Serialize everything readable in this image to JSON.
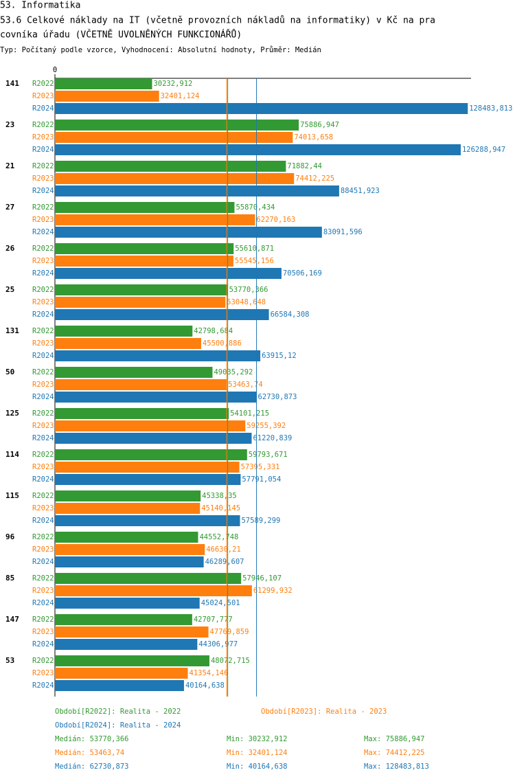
{
  "chart_data": {
    "type": "grouped-hbar",
    "heading": "53. Informatika",
    "title": [
      "53.6 Celkové náklady na IT (včetně provozních nákladů na informatiky) v Kč na pra",
      "covníka úřadu (VČETNĚ UVOLNĚNÝCH FUNKCIONÁŘŮ)"
    ],
    "subtitle": "Typ: Počítaný podle vzorce, Vyhodnocení: Absolutní hodnoty, Průměr: Medián",
    "xlim": [
      0,
      129500
    ],
    "xticks": [
      0
    ],
    "categories": [
      "141",
      "23",
      "21",
      "27",
      "26",
      "25",
      "131",
      "50",
      "125",
      "114",
      "115",
      "96",
      "85",
      "147",
      "53"
    ],
    "series": [
      {
        "name": "R2022",
        "legend_label": "Období[R2022]: Realita - 2022",
        "color": "#339933",
        "values": [
          30232.912,
          75886.947,
          71882.44,
          55870.434,
          55610.871,
          53770.366,
          42798.684,
          49035.292,
          54101.215,
          59793.671,
          45338.35,
          44552.748,
          57946.107,
          42707.777,
          48072.715
        ],
        "value_labels": [
          "30232,912",
          "75886,947",
          "71882,44",
          "55870,434",
          "55610,871",
          "53770,366",
          "42798,684",
          "49035,292",
          "54101,215",
          "59793,671",
          "45338,35",
          "44552,748",
          "57946,107",
          "42707,777",
          "48072,715"
        ],
        "median": 53770.366,
        "median_label": "Medián: 53770,366",
        "min_label": "Min: 30232,912",
        "max_label": "Max: 75886,947"
      },
      {
        "name": "R2023",
        "legend_label": "Období[R2023]: Realita - 2023",
        "color": "#ff7f0e",
        "values": [
          32401.124,
          74013.658,
          74412.225,
          62270.163,
          55545.156,
          53048.648,
          45500.886,
          53463.74,
          59255.392,
          57395.331,
          45140.145,
          46630.21,
          61299.932,
          47769.859,
          41354.146
        ],
        "value_labels": [
          "32401,124",
          "74013,658",
          "74412,225",
          "62270,163",
          "55545,156",
          "53048,648",
          "45500,886",
          "53463,74",
          "59255,392",
          "57395,331",
          "45140,145",
          "46630,21",
          "61299,932",
          "47769,859",
          "41354,146"
        ],
        "median": 53463.74,
        "median_label": "Medián: 53463,74",
        "min_label": "Min: 32401,124",
        "max_label": "Max: 74412,225"
      },
      {
        "name": "R2024",
        "legend_label": "Období[R2024]: Realita - 2024",
        "color": "#1f77b4",
        "values": [
          128483.813,
          126288.947,
          88451.923,
          83091.596,
          70506.169,
          66584.308,
          63915.12,
          62730.873,
          61220.839,
          57791.054,
          57589.299,
          46289.607,
          45024.501,
          44306.977,
          40164.638
        ],
        "value_labels": [
          "128483,813",
          "126288,947",
          "88451,923",
          "83091,596",
          "70506,169",
          "66584,308",
          "63915,12",
          "62730,873",
          "61220,839",
          "57791,054",
          "57589,299",
          "46289,607",
          "45024,501",
          "44306,977",
          "40164,638"
        ],
        "median": 62730.873,
        "median_label": "Medián: 62730,873",
        "min_label": "Min: 40164,638",
        "max_label": "Max: 128483,813"
      }
    ]
  }
}
